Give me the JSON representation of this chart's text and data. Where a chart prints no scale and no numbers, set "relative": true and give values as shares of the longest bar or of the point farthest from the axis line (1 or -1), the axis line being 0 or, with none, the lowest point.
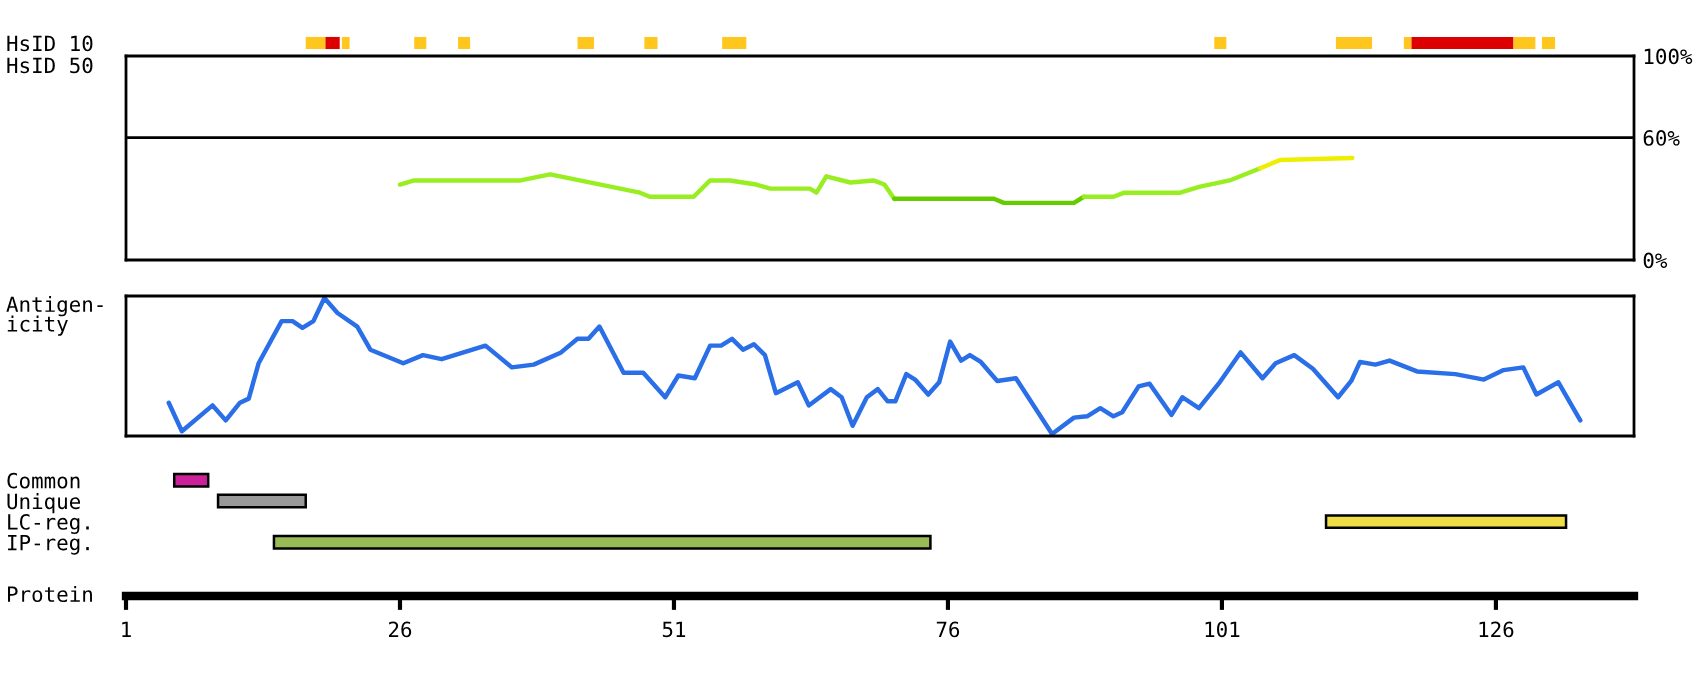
{
  "chart_data": [
    {
      "type": "bar",
      "orientation": "horizontal",
      "categories": [
        "HsID 10",
        "HsID 50"
      ],
      "xlim": [
        1,
        138.6
      ],
      "tick_labels": "y",
      "series": [
        {
          "color": "#ffc61e",
          "base": [
            17.4,
            null
          ],
          "values": [
            1.8,
            null
          ]
        },
        {
          "color": "#dd0000",
          "base": [
            19.2,
            null
          ],
          "values": [
            1.3,
            null
          ]
        },
        {
          "color": "#ffc61e",
          "base": [
            20.7,
            null
          ],
          "values": [
            0.7,
            null
          ]
        },
        {
          "color": "#ffc61e",
          "base": [
            27.3,
            null
          ],
          "values": [
            1.1,
            null
          ]
        },
        {
          "color": "#ffc61e",
          "base": [
            31.3,
            null
          ],
          "values": [
            1.1,
            null
          ]
        },
        {
          "color": "#ffc61e",
          "base": [
            42.2,
            null
          ],
          "values": [
            1.5,
            null
          ]
        },
        {
          "color": "#ffc61e",
          "base": [
            48.3,
            null
          ],
          "values": [
            1.2,
            null
          ]
        },
        {
          "color": "#ffc61e",
          "base": [
            55.4,
            null
          ],
          "values": [
            2.2,
            null
          ]
        },
        {
          "color": "#ffc61e",
          "base": [
            100.3,
            null
          ],
          "values": [
            1.1,
            null
          ]
        },
        {
          "color": "#ffc61e",
          "base": [
            111.4,
            null
          ],
          "values": [
            3.3,
            null
          ]
        },
        {
          "color": "#ffc61e",
          "base": [
            117.6,
            null
          ],
          "values": [
            0.7,
            null
          ]
        },
        {
          "color": "#dd0000",
          "base": [
            118.3,
            null
          ],
          "values": [
            9.3,
            null
          ]
        },
        {
          "color": "#ffc61e",
          "base": [
            127.6,
            null
          ],
          "values": [
            2.0,
            null
          ]
        },
        {
          "color": "#ffc61e",
          "base": [
            130.2,
            null
          ],
          "values": [
            1.2,
            null
          ]
        }
      ]
    },
    {
      "type": "line",
      "xlim": [
        1,
        138.6
      ],
      "ylim": [
        0,
        100
      ],
      "yticks": [
        {
          "value": 0,
          "label": "0%"
        },
        {
          "value": 60,
          "label": "60%"
        },
        {
          "value": 100,
          "label": "100%"
        }
      ],
      "tick_labels": "y",
      "ref_lines": [
        {
          "axis": "y",
          "value": 60,
          "color": "#000000"
        }
      ],
      "series": [
        {
          "color": "#99ee22",
          "x": [
            26,
            27.3,
            37,
            39.7,
            42.4,
            45.2,
            47.9,
            48.8,
            52.8,
            54.3,
            56.1,
            58.5,
            59.8,
            63.4,
            64,
            64.9,
            67.1,
            69.2,
            70.2,
            71.1
          ],
          "values": [
            37,
            39,
            39,
            42,
            39,
            36,
            33,
            31,
            31,
            39,
            39,
            37,
            35,
            35,
            33,
            41,
            38,
            39,
            37,
            30
          ]
        },
        {
          "color": "#66cc00",
          "x": [
            71.1,
            80.2,
            81.1,
            87.5,
            88.4
          ],
          "values": [
            30,
            30,
            28,
            28,
            31
          ]
        },
        {
          "color": "#99ee22",
          "x": [
            88.4,
            91.1,
            92.1,
            97.2,
            99,
            101.7,
            104.5
          ],
          "values": [
            31,
            31,
            33,
            33,
            36,
            39,
            45
          ]
        },
        {
          "color": "#eeee00",
          "x": [
            104.5,
            106.3,
            112.9
          ],
          "values": [
            45,
            49,
            50
          ]
        }
      ]
    },
    {
      "type": "line",
      "relative": true,
      "ylabel": "Antigen-\nicity",
      "xlim": [
        1,
        138.6
      ],
      "tick_labels": false,
      "series": [
        {
          "color": "#2a6ee8",
          "x": [
            4.9,
            6.1,
            8.9,
            10.1,
            11.4,
            12.2,
            13.1,
            15.2,
            16.2,
            17.1,
            18.1,
            19.1,
            20.3,
            22.1,
            23.3,
            26.3,
            28.1,
            29.8,
            33.8,
            36.2,
            38.2,
            40.7,
            42.2,
            43.2,
            44.2,
            46.4,
            48.2,
            50.2,
            51.4,
            52.9,
            54.3,
            55.3,
            56.3,
            57.3,
            58.3,
            59.3,
            60.3,
            62.3,
            63.3,
            65.3,
            66.3,
            67.3,
            68.6,
            69.6,
            70.5,
            71.2,
            72.2,
            73.0,
            74.2,
            75.2,
            76.2,
            77.2,
            78.0,
            79.0,
            80.5,
            82.2,
            85.5,
            87.5,
            88.7,
            89.9,
            91.1,
            91.9,
            93.4,
            94.4,
            96.4,
            97.4,
            98.9,
            100.7,
            102.7,
            104.7,
            105.9,
            107.6,
            109.3,
            111.6,
            112.8,
            113.6,
            115.0,
            116.3,
            118.8,
            122.3,
            124.9,
            126.7,
            128.5,
            129.7,
            131.7,
            133.7
          ],
          "values": [
            0.23,
            0.02,
            0.21,
            0.1,
            0.23,
            0.26,
            0.52,
            0.83,
            0.83,
            0.78,
            0.83,
            1.0,
            0.89,
            0.79,
            0.62,
            0.52,
            0.58,
            0.55,
            0.65,
            0.49,
            0.51,
            0.6,
            0.7,
            0.7,
            0.79,
            0.45,
            0.45,
            0.27,
            0.43,
            0.41,
            0.65,
            0.65,
            0.7,
            0.62,
            0.66,
            0.58,
            0.3,
            0.38,
            0.21,
            0.33,
            0.27,
            0.06,
            0.27,
            0.33,
            0.24,
            0.24,
            0.44,
            0.4,
            0.29,
            0.38,
            0.68,
            0.54,
            0.58,
            0.53,
            0.39,
            0.41,
            0.0,
            0.12,
            0.13,
            0.19,
            0.13,
            0.16,
            0.35,
            0.37,
            0.14,
            0.27,
            0.19,
            0.37,
            0.6,
            0.41,
            0.52,
            0.58,
            0.48,
            0.27,
            0.39,
            0.53,
            0.51,
            0.54,
            0.46,
            0.44,
            0.4,
            0.47,
            0.49,
            0.29,
            0.38,
            0.1
          ]
        }
      ]
    },
    {
      "type": "bar",
      "orientation": "horizontal",
      "categories": [
        "Common",
        "Unique",
        "LC-reg.",
        "IP-reg."
      ],
      "xlabel": "Protein",
      "xlim": [
        1,
        138.6
      ],
      "xticks": [
        1,
        26,
        51,
        76,
        101,
        126
      ],
      "series": [
        {
          "colors": [
            "#cc2299",
            "#999999",
            "#eedd44",
            "#99bb55"
          ],
          "base": [
            5.4,
            9.4,
            110.5,
            14.5
          ],
          "values": [
            3.1,
            8.0,
            21.9,
            59.9
          ]
        }
      ]
    }
  ]
}
